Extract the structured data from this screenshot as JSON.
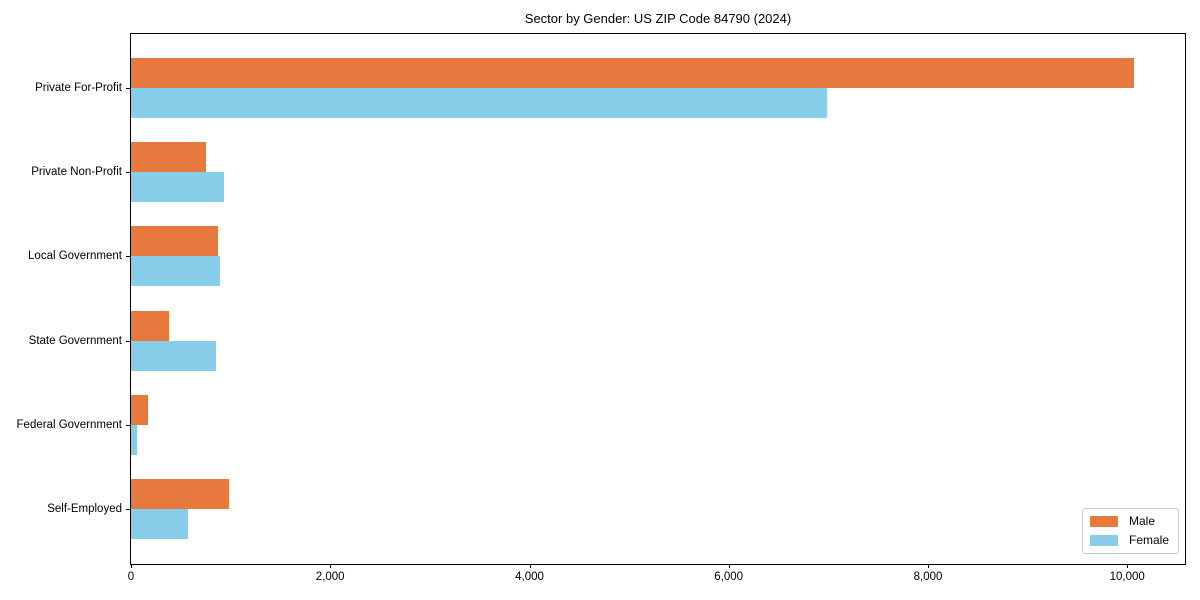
{
  "title": "Sector by Gender: US ZIP Code 84790 (2024)",
  "colors": {
    "male": "#e8793e",
    "female": "#87ceeb",
    "axis": "#000000",
    "legend_border": "#cccccc",
    "background": "#ffffff"
  },
  "chart_data": {
    "type": "bar",
    "orientation": "horizontal",
    "title": "Sector by Gender: US ZIP Code 84790 (2024)",
    "xlabel": "",
    "ylabel": "",
    "categories": [
      "Private For-Profit",
      "Private Non-Profit",
      "Local Government",
      "State Government",
      "Federal Government",
      "Self-Employed"
    ],
    "series": [
      {
        "name": "Male",
        "color": "#e8793e",
        "values": [
          10070,
          750,
          870,
          380,
          170,
          980
        ]
      },
      {
        "name": "Female",
        "color": "#87ceeb",
        "values": [
          6985,
          930,
          890,
          850,
          55,
          570
        ]
      }
    ],
    "xlim": [
      0,
      10580
    ],
    "xticks": {
      "values": [
        0,
        2000,
        4000,
        6000,
        8000,
        10000
      ],
      "labels": [
        "0",
        "2,000",
        "4,000",
        "6,000",
        "8,000",
        "10,000"
      ]
    },
    "grid": false,
    "legend": {
      "position": "lower right",
      "entries": [
        "Male",
        "Female"
      ]
    }
  }
}
